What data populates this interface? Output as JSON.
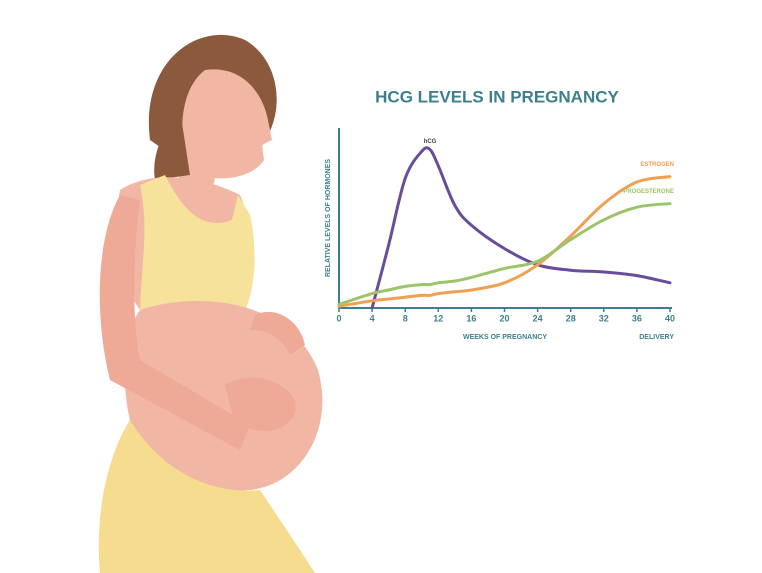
{
  "chart_data": {
    "type": "line",
    "title": "HCG LEVELS IN PREGNANCY",
    "y_label": "RELATIVE LEVELS OF HORMONES",
    "x_label": "WEEKS OF PREGNANCY",
    "annotation": "DELIVERY",
    "x": [
      0,
      4,
      6,
      8,
      10,
      11,
      12,
      14,
      16,
      20,
      24,
      28,
      32,
      36,
      40
    ],
    "series": [
      {
        "name": "hCG",
        "color": "#6a4c9c",
        "values": [
          null,
          0,
          35,
          72,
          87,
          88,
          79,
          57,
          46,
          33,
          24,
          21,
          20,
          18,
          14
        ]
      },
      {
        "name": "ESTROGEN",
        "color": "#f0a050",
        "values": [
          1,
          4,
          5,
          6,
          7,
          7,
          8,
          9,
          10,
          14,
          24,
          40,
          58,
          70,
          73
        ]
      },
      {
        "name": "PROGESTERONE",
        "color": "#9cc46a",
        "values": [
          2,
          8,
          10,
          12,
          13,
          13,
          14,
          15,
          17,
          22,
          26,
          38,
          49,
          56,
          58
        ]
      }
    ],
    "xlim": [
      0,
      40
    ],
    "xticks": [
      0,
      4,
      8,
      12,
      16,
      20,
      24,
      28,
      32,
      36,
      40
    ],
    "ylim": [
      0,
      100
    ]
  }
}
